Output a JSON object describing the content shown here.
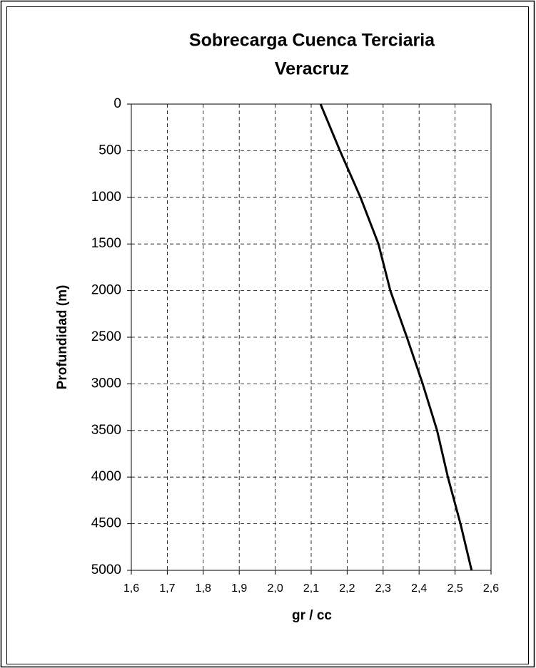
{
  "chart_data": {
    "type": "line",
    "title": [
      "Sobrecarga Cuenca Terciaria",
      "Veracruz"
    ],
    "xlabel": "gr / cc",
    "ylabel": "Profundidad (m)",
    "xlim": [
      1.6,
      2.6
    ],
    "xticks": [
      {
        "value": 1.6,
        "label": "1,6"
      },
      {
        "value": 1.7,
        "label": "1,7"
      },
      {
        "value": 1.8,
        "label": "1,8"
      },
      {
        "value": 1.9,
        "label": "1,9"
      },
      {
        "value": 2.0,
        "label": "2,0"
      },
      {
        "value": 2.1,
        "label": "2,1"
      },
      {
        "value": 2.2,
        "label": "2,2"
      },
      {
        "value": 2.3,
        "label": "2,3"
      },
      {
        "value": 2.4,
        "label": "2,4"
      },
      {
        "value": 2.5,
        "label": "2,5"
      },
      {
        "value": 2.6,
        "label": "2,6"
      }
    ],
    "ylim": [
      0,
      5000
    ],
    "y_reversed": true,
    "yticks": [
      0,
      500,
      1000,
      1500,
      2000,
      2500,
      3000,
      3500,
      4000,
      4500,
      5000
    ],
    "grid": true,
    "series": [
      {
        "color": "#000000",
        "x": [
          2.126,
          2.18,
          2.237,
          2.287,
          2.32,
          2.366,
          2.41,
          2.45,
          2.48,
          2.515,
          2.546
        ],
        "values": [
          0,
          500,
          1000,
          1500,
          2000,
          2500,
          3000,
          3500,
          4000,
          4500,
          5000
        ]
      }
    ]
  }
}
